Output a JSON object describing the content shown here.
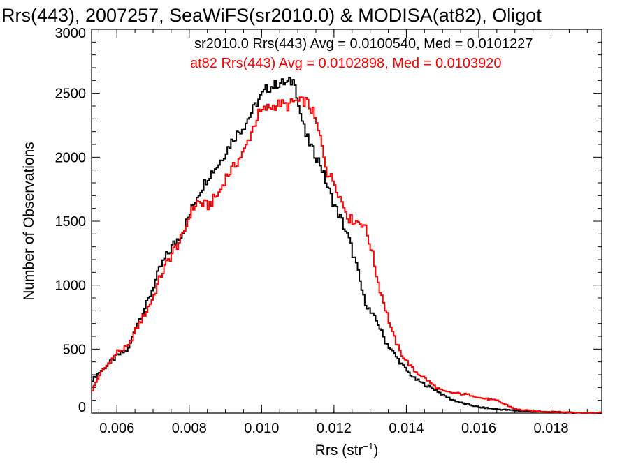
{
  "chart_data": {
    "type": "line",
    "title": "Rrs(443), 2007257, SeaWiFS(sr2010.0) & MODISA(at82), Oligot",
    "xlabel": "Rrs (str",
    "xlabel_sup": "−1",
    "xlabel_close": ")",
    "ylabel": "Number of Observations",
    "xlim": [
      0.0053,
      0.0194
    ],
    "ylim": [
      0,
      3000
    ],
    "xticks": [
      0.006,
      0.008,
      0.01,
      0.012,
      0.014,
      0.016,
      0.018
    ],
    "xtick_labels": [
      "0.006",
      "0.008",
      "0.010",
      "0.012",
      "0.014",
      "0.016",
      "0.018"
    ],
    "yticks": [
      0,
      500,
      1000,
      1500,
      2000,
      2500,
      3000
    ],
    "ytick_labels": [
      "0",
      "500",
      "1000",
      "1500",
      "2000",
      "2500",
      "3000"
    ],
    "annotations": [
      {
        "text": "sr2010.0 Rrs(443) Avg = 0.0100540, Med = 0.0101227",
        "color": "#000000"
      },
      {
        "text": "at82 Rrs(443) Avg = 0.0102898, Med = 0.0103920",
        "color": "#ff0000"
      }
    ],
    "series": [
      {
        "color": "#000000",
        "x": [
          0.0053,
          0.0055,
          0.006,
          0.0063,
          0.0065,
          0.0068,
          0.007,
          0.0072,
          0.0075,
          0.0078,
          0.008,
          0.0082,
          0.0085,
          0.0088,
          0.009,
          0.0092,
          0.0095,
          0.0097,
          0.0099,
          0.0101,
          0.0103,
          0.0105,
          0.0107,
          0.0109,
          0.011,
          0.0112,
          0.0114,
          0.0116,
          0.0118,
          0.012,
          0.0122,
          0.0124,
          0.0126,
          0.0128,
          0.013,
          0.0132,
          0.0134,
          0.0136,
          0.0138,
          0.014,
          0.0142,
          0.0145,
          0.0148,
          0.015,
          0.0152,
          0.0155,
          0.0158,
          0.016,
          0.0165,
          0.017,
          0.0175,
          0.018,
          0.0185,
          0.019
        ],
        "y": [
          260,
          320,
          450,
          500,
          680,
          850,
          1000,
          1150,
          1300,
          1420,
          1560,
          1700,
          1850,
          1950,
          2050,
          2150,
          2250,
          2350,
          2450,
          2530,
          2560,
          2580,
          2580,
          2600,
          2400,
          2170,
          2050,
          1950,
          1770,
          1620,
          1500,
          1350,
          1150,
          900,
          780,
          700,
          560,
          480,
          400,
          330,
          270,
          220,
          180,
          140,
          110,
          80,
          60,
          45,
          30,
          20,
          12,
          8,
          4,
          2
        ]
      },
      {
        "color": "#ff0000",
        "x": [
          0.0053,
          0.0055,
          0.006,
          0.0063,
          0.0065,
          0.0068,
          0.007,
          0.0072,
          0.0075,
          0.0078,
          0.008,
          0.0082,
          0.0085,
          0.0088,
          0.009,
          0.0092,
          0.0095,
          0.0097,
          0.0099,
          0.0101,
          0.0103,
          0.0105,
          0.0107,
          0.0109,
          0.011,
          0.0112,
          0.0114,
          0.0116,
          0.0118,
          0.012,
          0.0122,
          0.0124,
          0.0126,
          0.0128,
          0.013,
          0.0132,
          0.0134,
          0.0136,
          0.0138,
          0.014,
          0.0142,
          0.0145,
          0.0148,
          0.015,
          0.0152,
          0.0155,
          0.0158,
          0.016,
          0.0165,
          0.017,
          0.0175,
          0.018,
          0.0185,
          0.019
        ],
        "y": [
          180,
          300,
          480,
          520,
          650,
          800,
          920,
          1080,
          1250,
          1380,
          1560,
          1650,
          1620,
          1720,
          1850,
          1920,
          2050,
          2200,
          2340,
          2380,
          2400,
          2420,
          2400,
          2440,
          2430,
          2440,
          2350,
          2150,
          1880,
          1800,
          1650,
          1520,
          1500,
          1480,
          1300,
          1020,
          820,
          620,
          480,
          400,
          330,
          270,
          200,
          170,
          160,
          150,
          140,
          120,
          95,
          30,
          15,
          10,
          5,
          3
        ]
      }
    ],
    "grid": false,
    "legend": "none"
  }
}
